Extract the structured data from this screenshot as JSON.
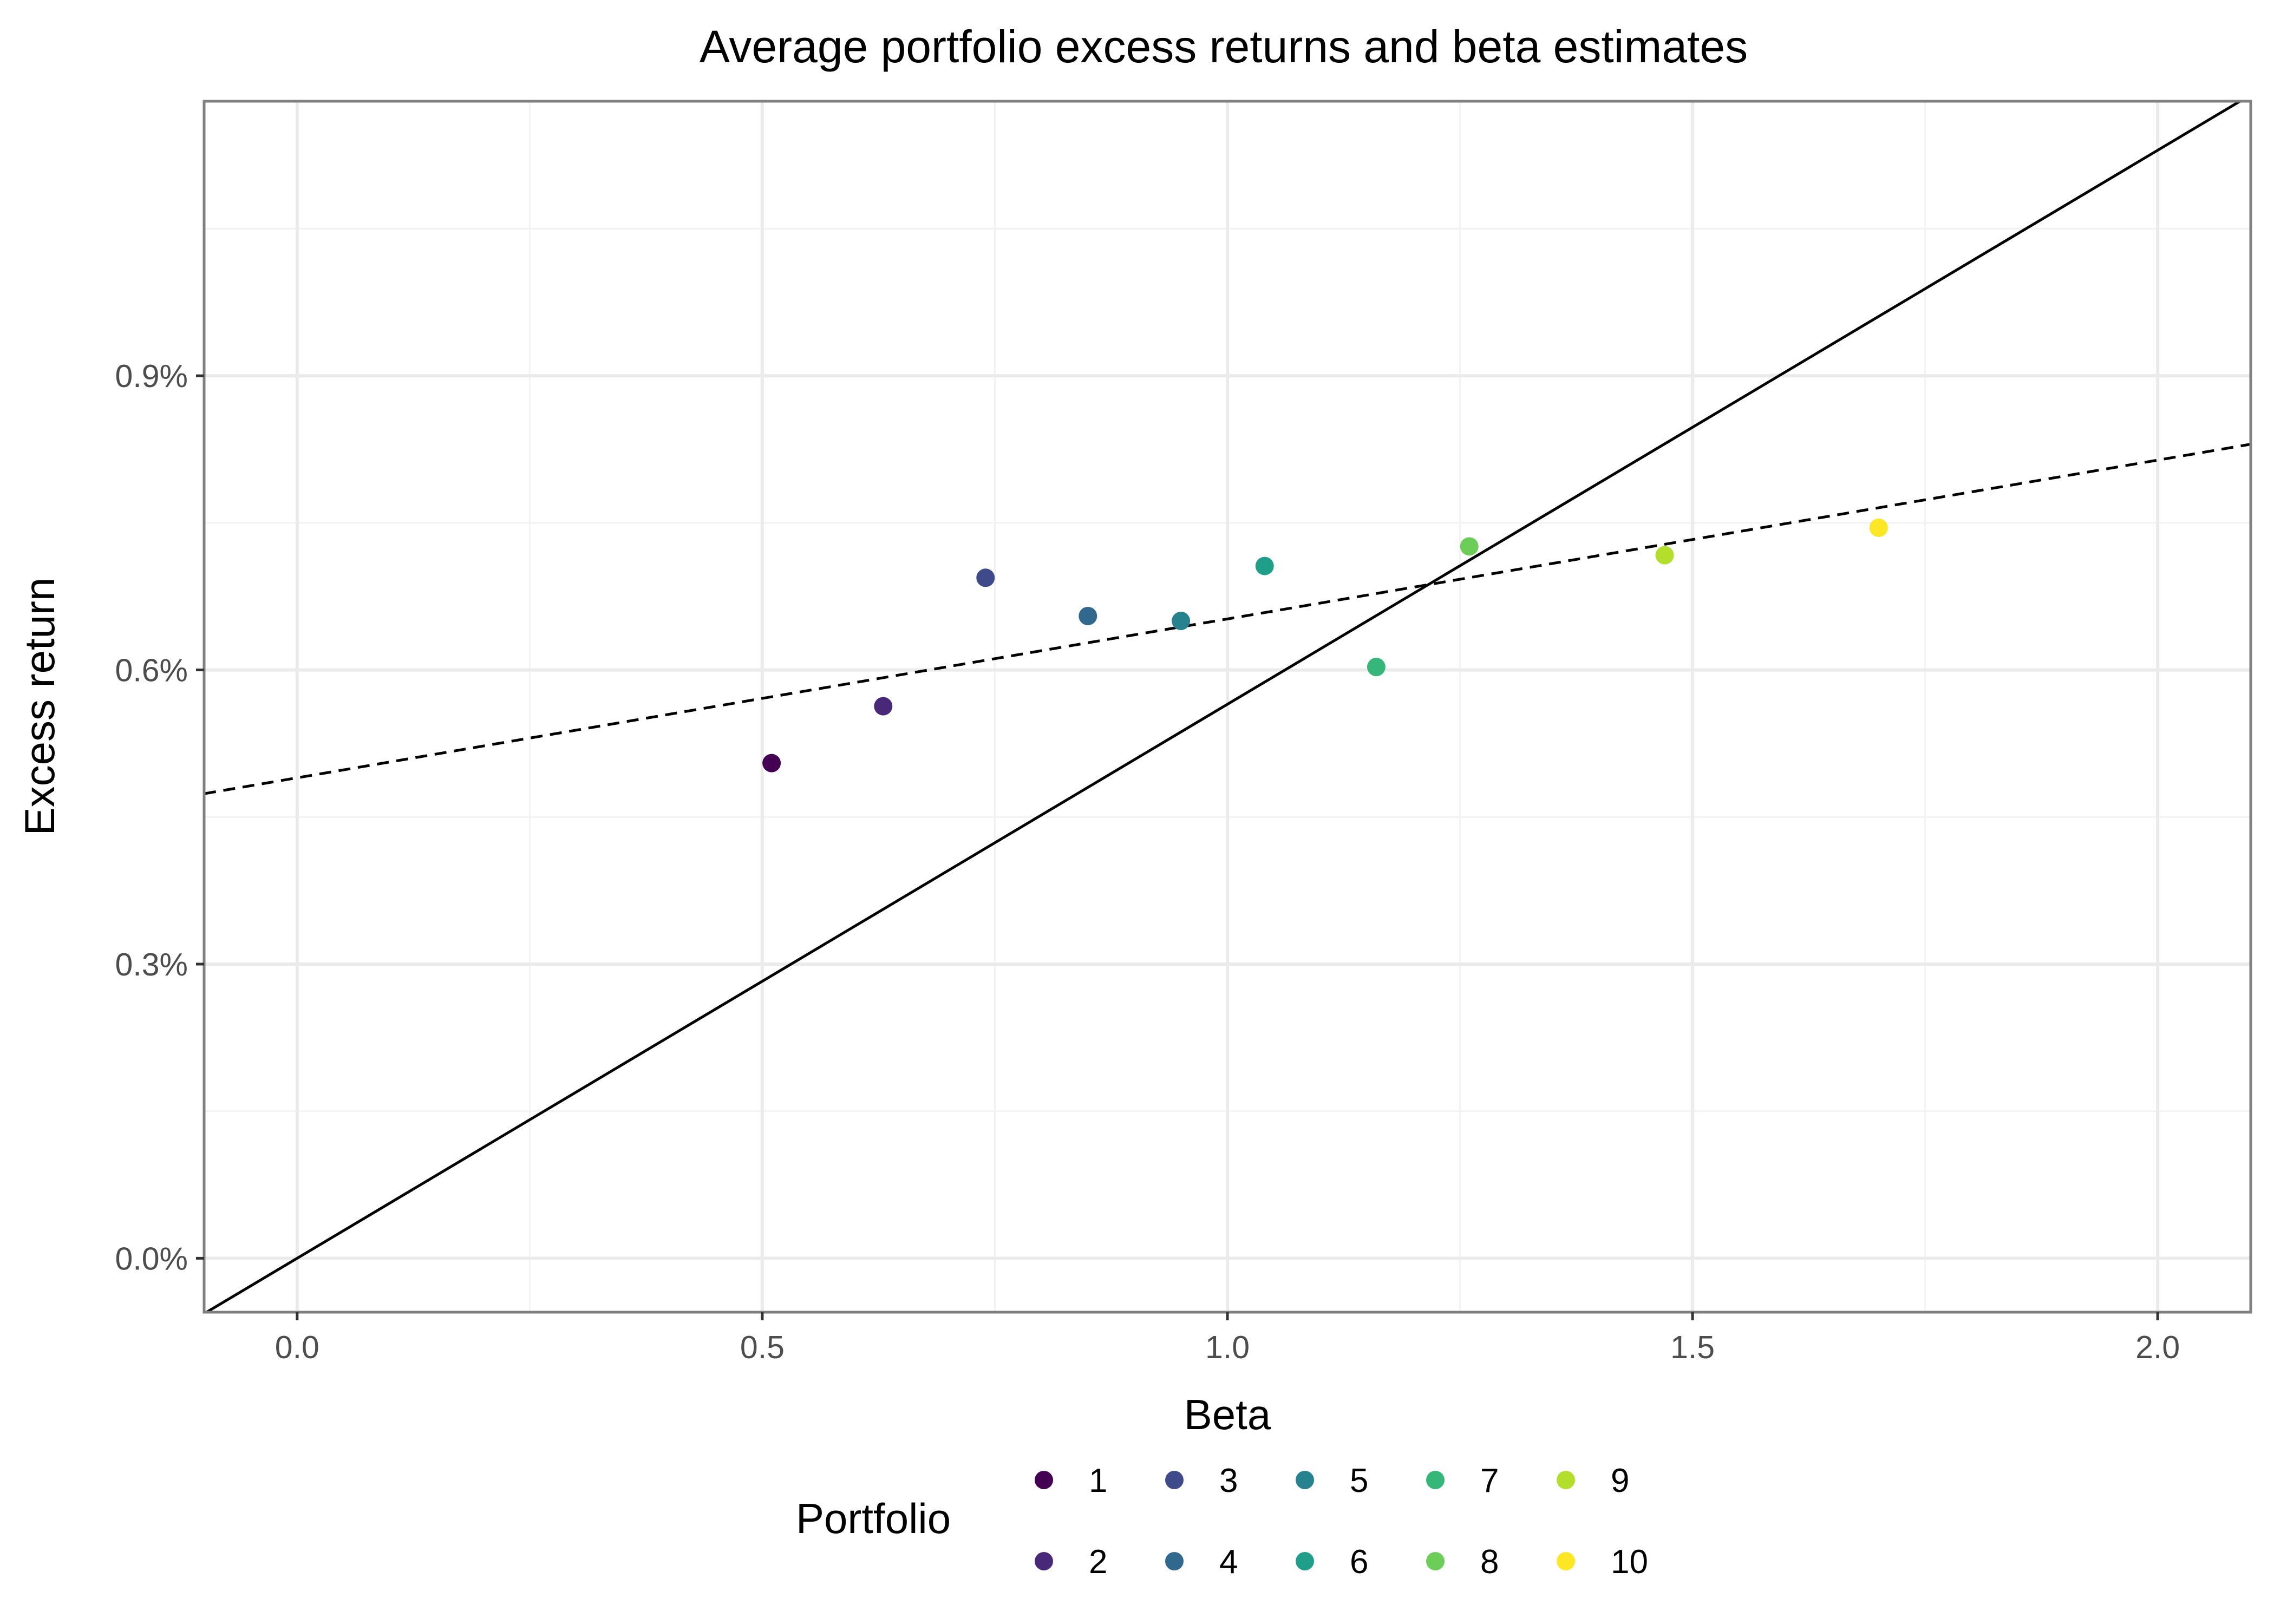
{
  "chart_data": {
    "type": "scatter",
    "title": "Average portfolio excess returns and beta estimates",
    "xlabel": "Beta",
    "ylabel": "Excess return",
    "xlim": [
      -0.1,
      2.1
    ],
    "ylim": [
      -0.00055,
      0.0118
    ],
    "x_ticks": [
      {
        "value": 0.0,
        "label": "0.0"
      },
      {
        "value": 0.5,
        "label": "0.5"
      },
      {
        "value": 1.0,
        "label": "1.0"
      },
      {
        "value": 1.5,
        "label": "1.5"
      },
      {
        "value": 2.0,
        "label": "2.0"
      }
    ],
    "y_ticks": [
      {
        "value": 0.0,
        "label": "0.0%"
      },
      {
        "value": 0.003,
        "label": "0.3%"
      },
      {
        "value": 0.006,
        "label": "0.6%"
      },
      {
        "value": 0.009,
        "label": "0.9%"
      }
    ],
    "grid": true,
    "legend": {
      "title": "Portfolio",
      "position": "bottom"
    },
    "series": [
      {
        "name": "1",
        "color": "#440154",
        "x": 0.51,
        "y": 0.00505
      },
      {
        "name": "2",
        "color": "#482878",
        "x": 0.63,
        "y": 0.00563
      },
      {
        "name": "3",
        "color": "#3E4A89",
        "x": 0.74,
        "y": 0.00694
      },
      {
        "name": "4",
        "color": "#31688E",
        "x": 0.85,
        "y": 0.00655
      },
      {
        "name": "5",
        "color": "#26828E",
        "x": 0.95,
        "y": 0.0065
      },
      {
        "name": "6",
        "color": "#1F9E89",
        "x": 1.04,
        "y": 0.00706
      },
      {
        "name": "7",
        "color": "#35B779",
        "x": 1.16,
        "y": 0.00603
      },
      {
        "name": "8",
        "color": "#6DCD59",
        "x": 1.26,
        "y": 0.00726
      },
      {
        "name": "9",
        "color": "#B4DE2C",
        "x": 1.47,
        "y": 0.00717
      },
      {
        "name": "10",
        "color": "#FDE725",
        "x": 1.7,
        "y": 0.00745
      }
    ],
    "lines": [
      {
        "style": "solid",
        "intercept": 0.0,
        "slope": 0.00565
      },
      {
        "style": "dashed",
        "intercept": 0.0049,
        "slope": 0.00162
      }
    ]
  }
}
